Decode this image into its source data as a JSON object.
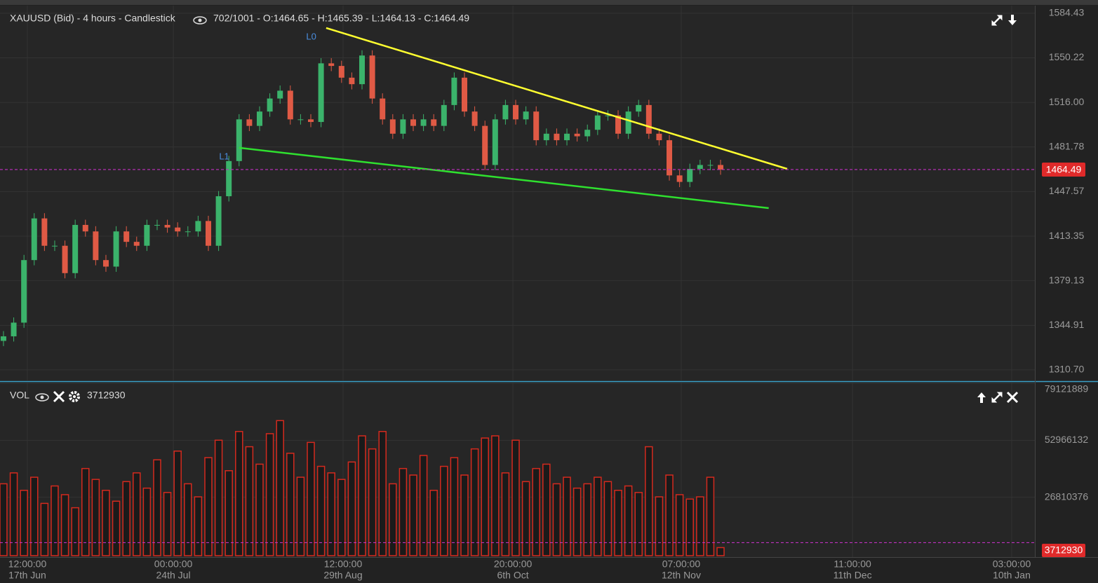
{
  "chart_data": [
    {
      "type": "candlestick",
      "title": "XAUUSD (Bid) - 4 hours - Candlestick",
      "info": "702/1001 - O:1464.65 - H:1465.39 - L:1464.13 - C:1464.49",
      "up_color": "#3bb36b",
      "down_color": "#e05a45",
      "open": [
        1333,
        1336.5,
        1347,
        1395,
        1427,
        1406,
        1406,
        1385,
        1422,
        1417,
        1395,
        1390,
        1417,
        1409,
        1406,
        1422,
        1422,
        1420,
        1417,
        1417,
        1425,
        1406,
        1444,
        1471,
        1503,
        1498,
        1509,
        1519,
        1525,
        1503,
        1503,
        1501,
        1546,
        1544,
        1535,
        1530,
        1552,
        1519,
        1503,
        1492,
        1503,
        1498,
        1503,
        1498,
        1514,
        1535,
        1509,
        1498,
        1468,
        1503,
        1514,
        1503,
        1509,
        1487,
        1492,
        1487,
        1492,
        1490,
        1495,
        1506,
        1506,
        1492,
        1509,
        1514,
        1492,
        1487,
        1460,
        1455,
        1465,
        1468,
        1468
      ],
      "high": [
        1340.5,
        1351,
        1399,
        1431,
        1431,
        1410,
        1410,
        1426,
        1426,
        1421,
        1399,
        1421,
        1421,
        1413,
        1426,
        1426,
        1426,
        1424,
        1421,
        1429,
        1429,
        1448,
        1475,
        1507,
        1507,
        1513,
        1523,
        1529,
        1529,
        1507,
        1507,
        1550,
        1550,
        1548,
        1539,
        1556,
        1556,
        1523,
        1507,
        1507,
        1507,
        1507,
        1507,
        1518,
        1539,
        1539,
        1513,
        1502,
        1507,
        1518,
        1518,
        1513,
        1513,
        1496,
        1496,
        1496,
        1496,
        1499,
        1510,
        1510,
        1510,
        1513,
        1518,
        1518,
        1496,
        1491,
        1464,
        1469,
        1472,
        1472,
        1472
      ],
      "low": [
        1329,
        1332.5,
        1343,
        1391,
        1402,
        1402,
        1381,
        1381,
        1413,
        1391,
        1386,
        1386,
        1405,
        1402,
        1402,
        1418,
        1416,
        1413,
        1413,
        1413,
        1402,
        1402,
        1440,
        1467,
        1494,
        1494,
        1505,
        1515,
        1499,
        1499,
        1497,
        1497,
        1540,
        1531,
        1526,
        1526,
        1515,
        1499,
        1488,
        1488,
        1494,
        1494,
        1494,
        1494,
        1510,
        1505,
        1494,
        1464,
        1464,
        1499,
        1499,
        1499,
        1483,
        1483,
        1483,
        1483,
        1486,
        1486,
        1491,
        1502,
        1488,
        1488,
        1505,
        1488,
        1483,
        1456,
        1451,
        1451,
        1461,
        1464,
        1460.49
      ],
      "close": [
        1336.5,
        1347,
        1395,
        1427,
        1406,
        1406,
        1385,
        1422,
        1417,
        1395,
        1390,
        1417,
        1409,
        1406,
        1422,
        1422,
        1420,
        1417,
        1417,
        1425,
        1406,
        1444,
        1471,
        1503,
        1498,
        1509,
        1519,
        1525,
        1503,
        1503,
        1501,
        1546,
        1544,
        1535,
        1530,
        1552,
        1519,
        1503,
        1492,
        1503,
        1498,
        1503,
        1498,
        1514,
        1535,
        1509,
        1498,
        1468,
        1503,
        1514,
        1503,
        1509,
        1487,
        1492,
        1487,
        1492,
        1490,
        1495,
        1506,
        1506,
        1492,
        1509,
        1514,
        1492,
        1487,
        1460,
        1455,
        1465,
        1468,
        1468,
        1464.49
      ],
      "xlim": [
        -0.34,
        100.68
      ],
      "xticks": [
        {
          "value": 2.33,
          "label": "12:00:00",
          "date": "17th Jun"
        },
        {
          "value": 16.58,
          "label": "00:00:00",
          "date": "24th Jul"
        },
        {
          "value": 33.15,
          "label": "12:00:00",
          "date": "29th Aug"
        },
        {
          "value": 49.73,
          "label": "20:00:00",
          "date": "6th Oct"
        },
        {
          "value": 66.16,
          "label": "07:00:00",
          "date": "12th Nov"
        },
        {
          "value": 82.88,
          "label": "11:00:00",
          "date": "11th Dec"
        },
        {
          "value": 98.42,
          "label": "03:00:00",
          "date": "10th Jan"
        }
      ],
      "ylim": [
        1302.6,
        1590.3
      ],
      "yticks": [
        {
          "value": 1310.7,
          "label": "1310.70"
        },
        1344.91,
        1379.13,
        1413.35,
        1447.57,
        1481.78,
        {
          "value": 1516,
          "label": "1516.00"
        },
        1550.22,
        1584.43
      ],
      "grid": true,
      "current": 1464.49,
      "current_color": "#c030c0",
      "trendlines": [
        {
          "label": "L0",
          "color": "#ffff30",
          "x": [
            31.5,
            76.5
          ],
          "y": [
            1573.1,
            1465.0
          ]
        },
        {
          "label": "L1",
          "color": "#2fe02f",
          "x": [
            23.0,
            74.7
          ],
          "y": [
            1481.2,
            1434.9
          ]
        }
      ]
    },
    {
      "type": "bar",
      "title": "VOL",
      "color": "#d42a1e",
      "values": [
        33000000,
        38000000,
        30000000,
        36000000,
        24000000,
        32000000,
        28000000,
        22000000,
        40000000,
        35000000,
        30000000,
        25000000,
        34000000,
        38000000,
        31000000,
        44000000,
        29000000,
        48000000,
        33000000,
        27000000,
        45000000,
        53000000,
        39000000,
        57000000,
        50000000,
        42000000,
        56000000,
        62000000,
        47000000,
        36000000,
        52000000,
        41000000,
        38000000,
        35000000,
        43000000,
        55000000,
        49000000,
        57000000,
        33000000,
        40000000,
        37000000,
        46000000,
        30000000,
        41000000,
        45000000,
        37000000,
        49000000,
        54000000,
        55000000,
        38000000,
        53000000,
        34000000,
        40000000,
        42000000,
        33000000,
        36000000,
        31000000,
        33000000,
        36000000,
        34000000,
        30000000,
        32000000,
        29000000,
        50000000,
        27000000,
        37000000,
        28000000,
        26000000,
        27000000,
        36000000,
        3712930
      ],
      "ylim": [
        0,
        79121889
      ],
      "yticks": [
        26810376,
        52966132,
        79121889
      ],
      "grid": true,
      "current": 3712930
    }
  ]
}
